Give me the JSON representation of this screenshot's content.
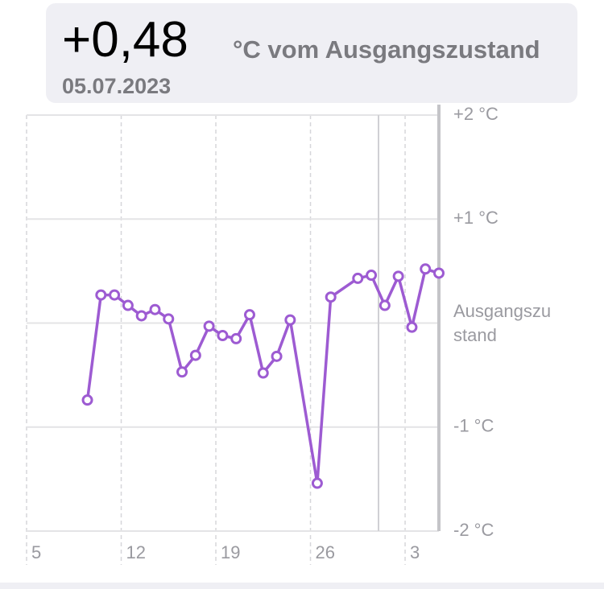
{
  "header": {
    "value": "+0,48",
    "unit": "°C vom Ausgangszustand",
    "date": "05.07.2023"
  },
  "chart_data": {
    "type": "line",
    "x": [
      4.5,
      5.5,
      6.5,
      7.5,
      8.5,
      9.5,
      10.5,
      11.5,
      12.5,
      13.5,
      14.5,
      15.5,
      16.5,
      17.5,
      18.5,
      19.5,
      21.5,
      22.5,
      24.5,
      25.5,
      26.5,
      27.5,
      28.5,
      29.5,
      30.5
    ],
    "series": [
      {
        "color": "#9d5bd2",
        "values": [
          -0.74,
          0.27,
          0.27,
          0.17,
          0.07,
          0.13,
          0.04,
          -0.47,
          -0.31,
          -0.03,
          -0.12,
          -0.15,
          0.08,
          -0.48,
          -0.32,
          0.03,
          -1.54,
          0.25,
          0.43,
          0.46,
          0.17,
          0.45,
          -0.04,
          0.52,
          0.48
        ]
      }
    ],
    "xlim": [
      0,
      30.5
    ],
    "xticks": [
      {
        "value": 0,
        "label": "5"
      },
      {
        "value": 7,
        "label": "12"
      },
      {
        "value": 14,
        "label": "19"
      },
      {
        "value": 21,
        "label": "26"
      },
      {
        "value": 28,
        "label": "3"
      }
    ],
    "ylim": [
      -2,
      2
    ],
    "yticks": [
      {
        "value": 2,
        "label": "+2 °C"
      },
      {
        "value": 1,
        "label": "+1 °C"
      },
      {
        "value": 0,
        "label": "Ausgangszustand"
      },
      {
        "value": -1,
        "label": "-1 °C"
      },
      {
        "value": -2,
        "label": "-2 °C"
      }
    ],
    "grid": true
  }
}
